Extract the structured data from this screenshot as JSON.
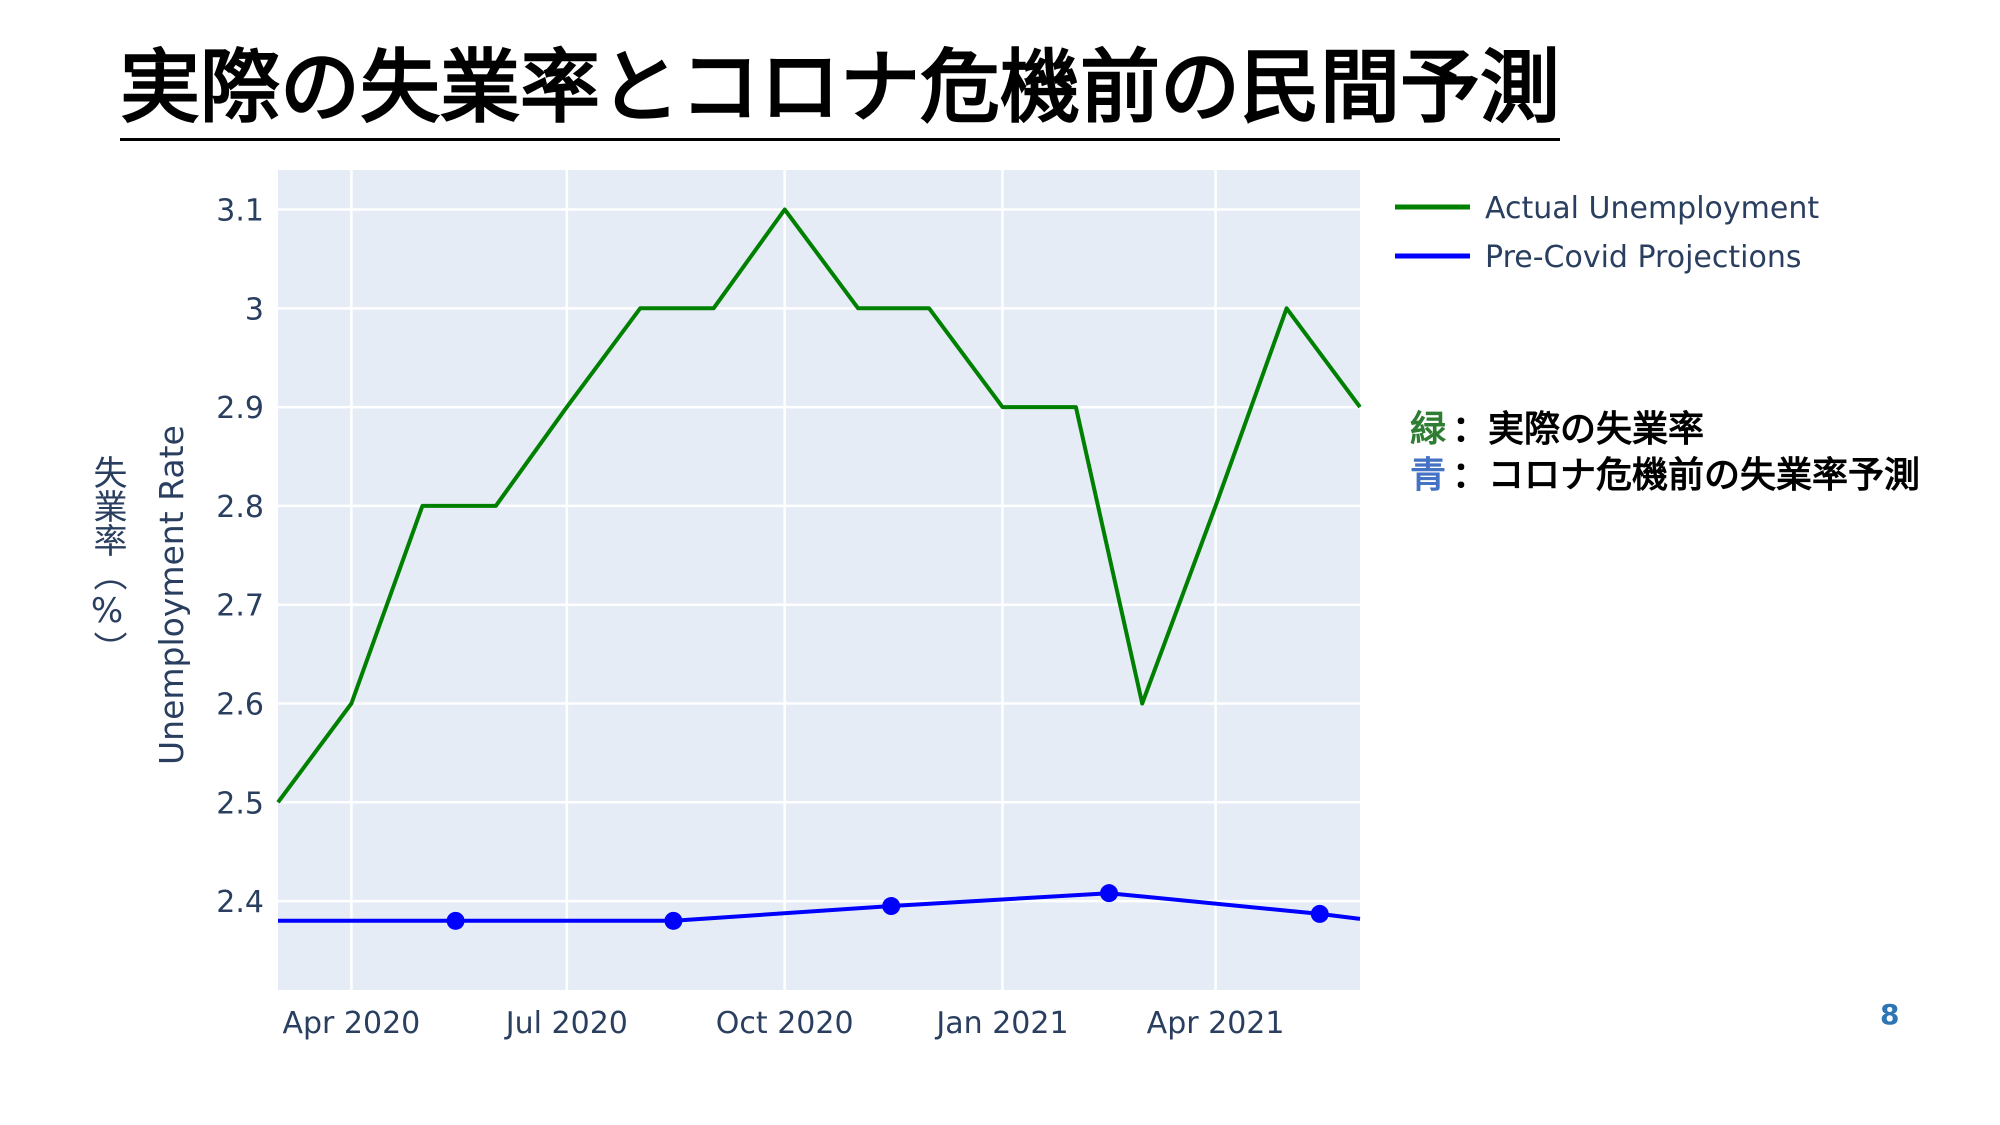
{
  "slide": {
    "title": "実際の失業率とコロナ危機前の民間予測",
    "page_number": "8"
  },
  "notes": {
    "green_key": "緑",
    "green_text": "：実際の失業率",
    "blue_key": "青",
    "blue_text": "：コロナ危機前の失業率予測",
    "green_color": "#2e7d32",
    "blue_color": "#4472c4"
  },
  "chart_data": {
    "type": "line",
    "ylabel_jp": "失業率（%）",
    "ylabel": "Unemployment Rate",
    "ylim": [
      2.31,
      3.14
    ],
    "y_ticks": [
      "2.4",
      "2.5",
      "2.6",
      "2.7",
      "2.8",
      "2.9",
      "3",
      "3.1"
    ],
    "x_ticks": [
      {
        "date": "2020-04-01",
        "label": "Apr 2020"
      },
      {
        "date": "2020-07-01",
        "label": "Jul 2020"
      },
      {
        "date": "2020-10-01",
        "label": "Oct 2020"
      },
      {
        "date": "2021-01-01",
        "label": "Jan 2021"
      },
      {
        "date": "2021-04-01",
        "label": "Apr 2021"
      }
    ],
    "xlim": [
      "2020-03-01",
      "2021-06-01"
    ],
    "grid": true,
    "legend_position": "top-right",
    "plot_bg": "#e5ecf6",
    "series": [
      {
        "name": "Actual Unemployment",
        "color": "#008000",
        "markers": false,
        "x": [
          "2020-03-01",
          "2020-04-01",
          "2020-05-01",
          "2020-06-01",
          "2020-07-01",
          "2020-08-01",
          "2020-09-01",
          "2020-10-01",
          "2020-11-01",
          "2020-12-01",
          "2021-01-01",
          "2021-02-01",
          "2021-03-01",
          "2021-04-01",
          "2021-05-01",
          "2021-06-01"
        ],
        "y": [
          2.5,
          2.6,
          2.8,
          2.8,
          2.9,
          3.0,
          3.0,
          3.1,
          3.0,
          3.0,
          2.9,
          2.9,
          2.6,
          2.8,
          3.0,
          2.9
        ]
      },
      {
        "name": "Pre-Covid Projections",
        "color": "#0000ff",
        "markers": true,
        "x": [
          "2020-03-01",
          "2020-05-15",
          "2020-08-15",
          "2020-11-15",
          "2021-02-15",
          "2021-05-15",
          "2021-06-01"
        ],
        "y": [
          2.38,
          2.38,
          2.38,
          2.395,
          2.408,
          2.387,
          2.382
        ],
        "marker_points": [
          1,
          2,
          3,
          4,
          5
        ]
      }
    ]
  }
}
